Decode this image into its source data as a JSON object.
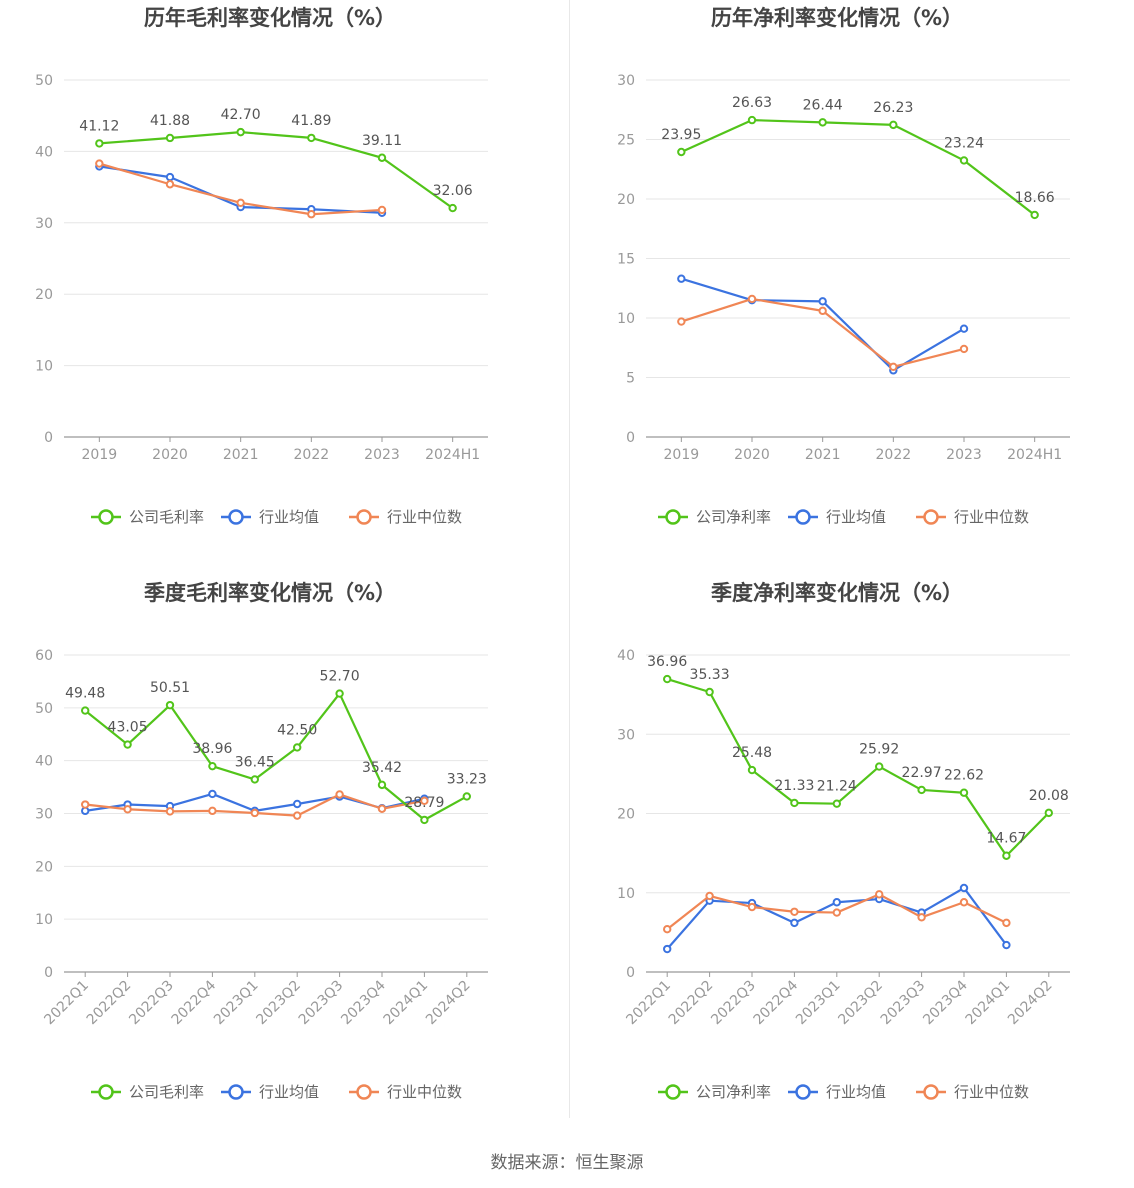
{
  "source_label": "数据来源：恒生聚源",
  "colors": {
    "company": "#52c41a",
    "avg": "#3b73e0",
    "median": "#f08655",
    "grid": "#e6e6e6",
    "axis": "#999999"
  },
  "chart_data": [
    {
      "type": "line",
      "title": "历年毛利率变化情况（%）",
      "categories": [
        "2019",
        "2020",
        "2021",
        "2022",
        "2023",
        "2024H1"
      ],
      "ylim": [
        0,
        50
      ],
      "yticks": [
        0,
        10,
        20,
        30,
        40,
        50
      ],
      "grid": true,
      "legend": "bottom-center",
      "series": [
        {
          "name": "公司毛利率",
          "role": "company",
          "labeled": true,
          "values": [
            41.12,
            41.88,
            42.7,
            41.89,
            39.11,
            32.06
          ],
          "labels": [
            "41.12",
            "41.88",
            "42.70",
            "41.89",
            "39.11",
            "32.06"
          ]
        },
        {
          "name": "行业均值",
          "role": "avg",
          "labeled": false,
          "values": [
            37.9,
            36.4,
            32.2,
            31.9,
            31.4,
            null
          ]
        },
        {
          "name": "行业中位数",
          "role": "median",
          "labeled": false,
          "values": [
            38.3,
            35.4,
            32.8,
            31.2,
            31.8,
            null
          ]
        }
      ]
    },
    {
      "type": "line",
      "title": "历年净利率变化情况（%）",
      "categories": [
        "2019",
        "2020",
        "2021",
        "2022",
        "2023",
        "2024H1"
      ],
      "ylim": [
        0,
        30
      ],
      "yticks": [
        0,
        5,
        10,
        15,
        20,
        25,
        30
      ],
      "grid": true,
      "legend": "bottom-center",
      "series": [
        {
          "name": "公司净利率",
          "role": "company",
          "labeled": true,
          "values": [
            23.95,
            26.63,
            26.44,
            26.23,
            23.24,
            18.66
          ],
          "labels": [
            "23.95",
            "26.63",
            "26.44",
            "26.23",
            "23.24",
            "18.66"
          ]
        },
        {
          "name": "行业均值",
          "role": "avg",
          "labeled": false,
          "values": [
            13.3,
            11.5,
            11.4,
            5.6,
            9.1,
            null
          ]
        },
        {
          "name": "行业中位数",
          "role": "median",
          "labeled": false,
          "values": [
            9.7,
            11.6,
            10.6,
            5.9,
            7.4,
            null
          ]
        }
      ]
    },
    {
      "type": "line",
      "title": "季度毛利率变化情况（%）",
      "categories": [
        "2022Q1",
        "2022Q2",
        "2022Q3",
        "2022Q4",
        "2023Q1",
        "2023Q2",
        "2023Q3",
        "2023Q4",
        "2024Q1",
        "2024Q2"
      ],
      "ylim": [
        0,
        60
      ],
      "yticks": [
        0,
        10,
        20,
        30,
        40,
        50,
        60
      ],
      "grid": true,
      "legend": "bottom-center",
      "series": [
        {
          "name": "公司毛利率",
          "role": "company",
          "labeled": true,
          "values": [
            49.48,
            43.05,
            50.51,
            38.96,
            36.45,
            42.5,
            52.7,
            35.42,
            28.79,
            33.23
          ],
          "labels": [
            "49.48",
            "43.05",
            "50.51",
            "38.96",
            "36.45",
            "42.50",
            "52.70",
            "35.42",
            "28.79",
            "33.23"
          ]
        },
        {
          "name": "行业均值",
          "role": "avg",
          "labeled": false,
          "values": [
            30.5,
            31.7,
            31.4,
            33.7,
            30.5,
            31.8,
            33.2,
            31.0,
            32.8,
            null
          ]
        },
        {
          "name": "行业中位数",
          "role": "median",
          "labeled": false,
          "values": [
            31.7,
            30.8,
            30.4,
            30.5,
            30.1,
            29.6,
            33.6,
            30.9,
            32.4,
            null
          ]
        }
      ]
    },
    {
      "type": "line",
      "title": "季度净利率变化情况（%）",
      "categories": [
        "2022Q1",
        "2022Q2",
        "2022Q3",
        "2022Q4",
        "2023Q1",
        "2023Q2",
        "2023Q3",
        "2023Q4",
        "2024Q1",
        "2024Q2"
      ],
      "ylim": [
        0,
        40
      ],
      "yticks": [
        0,
        10,
        20,
        30,
        40
      ],
      "grid": true,
      "legend": "bottom-center",
      "series": [
        {
          "name": "公司净利率",
          "role": "company",
          "labeled": true,
          "values": [
            36.96,
            35.33,
            25.48,
            21.33,
            21.24,
            25.92,
            22.97,
            22.62,
            14.67,
            20.08
          ],
          "labels": [
            "36.96",
            "35.33",
            "25.48",
            "21.33",
            "21.24",
            "25.92",
            "22.97",
            "22.62",
            "14.67",
            "20.08"
          ]
        },
        {
          "name": "行业均值",
          "role": "avg",
          "labeled": false,
          "values": [
            2.9,
            9.0,
            8.7,
            6.2,
            8.8,
            9.2,
            7.5,
            10.6,
            3.4,
            null
          ]
        },
        {
          "name": "行业中位数",
          "role": "median",
          "labeled": false,
          "values": [
            5.4,
            9.6,
            8.2,
            7.6,
            7.5,
            9.8,
            6.9,
            8.8,
            6.2,
            null
          ]
        }
      ]
    }
  ]
}
